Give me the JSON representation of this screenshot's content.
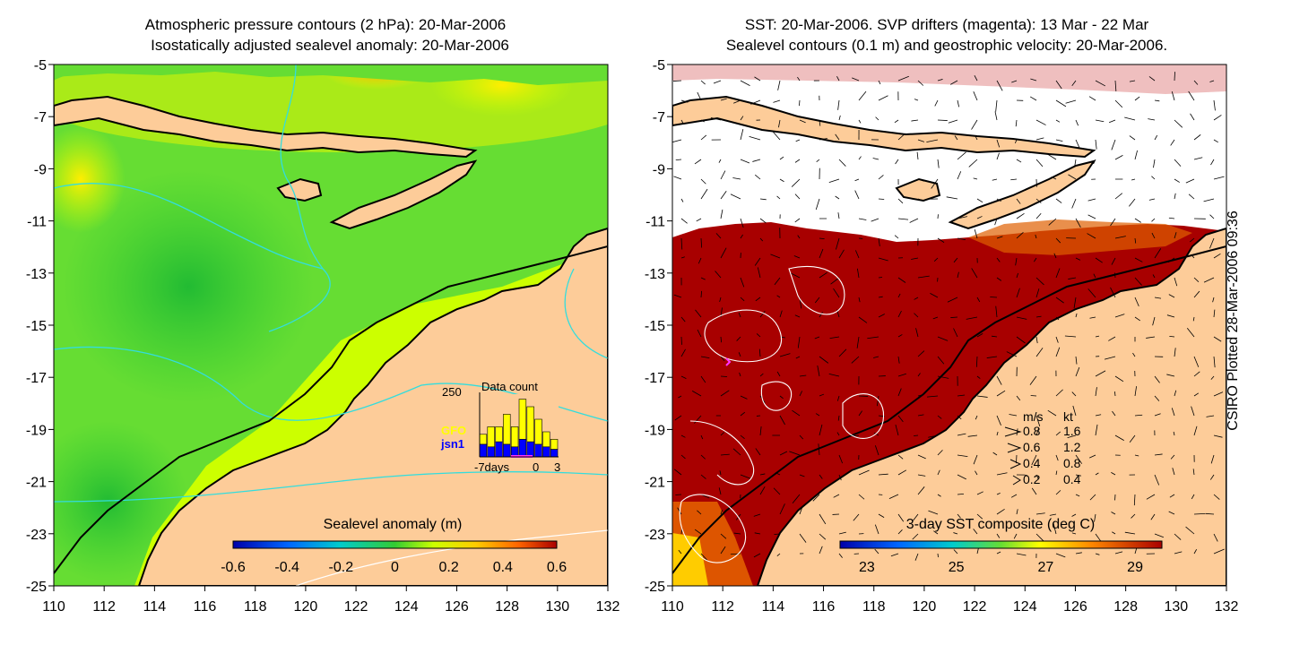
{
  "left_panel": {
    "title_line1": "Atmospheric pressure contours (2 hPa): 20-Mar-2006",
    "title_line2": "Isostatically adjusted sealevel anomaly: 20-Mar-2006",
    "colorbar": {
      "title": "Sealevel anomaly (m)",
      "ticks": [
        "-0.6",
        "-0.4",
        "-0.2",
        "0",
        "0.2",
        "0.4",
        "0.6"
      ],
      "range": [
        -0.6,
        0.6
      ]
    },
    "inset": {
      "title": "Data count",
      "ymax_label": "250",
      "xlabels": [
        "-7days",
        "0",
        "3"
      ],
      "legend": [
        {
          "label": "GFO",
          "color": "#ffff00"
        },
        {
          "label": "jsn1",
          "color": "#0000ff"
        }
      ],
      "bars_gfo": [
        40,
        80,
        60,
        120,
        80,
        160,
        140,
        100,
        60,
        40
      ],
      "bars_jsn1": [
        50,
        40,
        60,
        50,
        40,
        70,
        60,
        50,
        40,
        30
      ]
    }
  },
  "right_panel": {
    "title_line1": "SST: 20-Mar-2006. SVP drifters (magenta): 13 Mar - 22 Mar",
    "title_line2": "Sealevel contours (0.1 m) and geostrophic velocity: 20-Mar-2006.",
    "colorbar": {
      "title": "3-day SST composite (deg C)",
      "ticks": [
        "23",
        "25",
        "27",
        "29"
      ],
      "range": [
        22.4,
        29.6
      ]
    },
    "velocity_legend": {
      "header_ms": "m/s",
      "header_kt": "kt",
      "rows": [
        {
          "ms": "0.8",
          "kt": "1.6"
        },
        {
          "ms": "0.6",
          "kt": "1.2"
        },
        {
          "ms": "0.4",
          "kt": "0.8"
        },
        {
          "ms": "0.2",
          "kt": "0.4"
        }
      ]
    }
  },
  "axes": {
    "lon_ticks": [
      "110",
      "112",
      "114",
      "116",
      "118",
      "120",
      "122",
      "124",
      "126",
      "128",
      "130",
      "132"
    ],
    "lat_ticks": [
      "-5",
      "-7",
      "-9",
      "-11",
      "-13",
      "-15",
      "-17",
      "-19",
      "-21",
      "-23",
      "-25"
    ],
    "lon_range": [
      110,
      132
    ],
    "lat_range": [
      -25,
      -5
    ]
  },
  "footer": {
    "plotted": "CSIRO Plotted 28-Mar-2006 09:36"
  },
  "colors": {
    "land": "#fdcc99",
    "sst_warm": "#a80000",
    "sla_green": "#33cc33",
    "sla_lime": "#ccff00",
    "pressure_contour": "#33dddd",
    "drifter": "#ff33ff"
  }
}
